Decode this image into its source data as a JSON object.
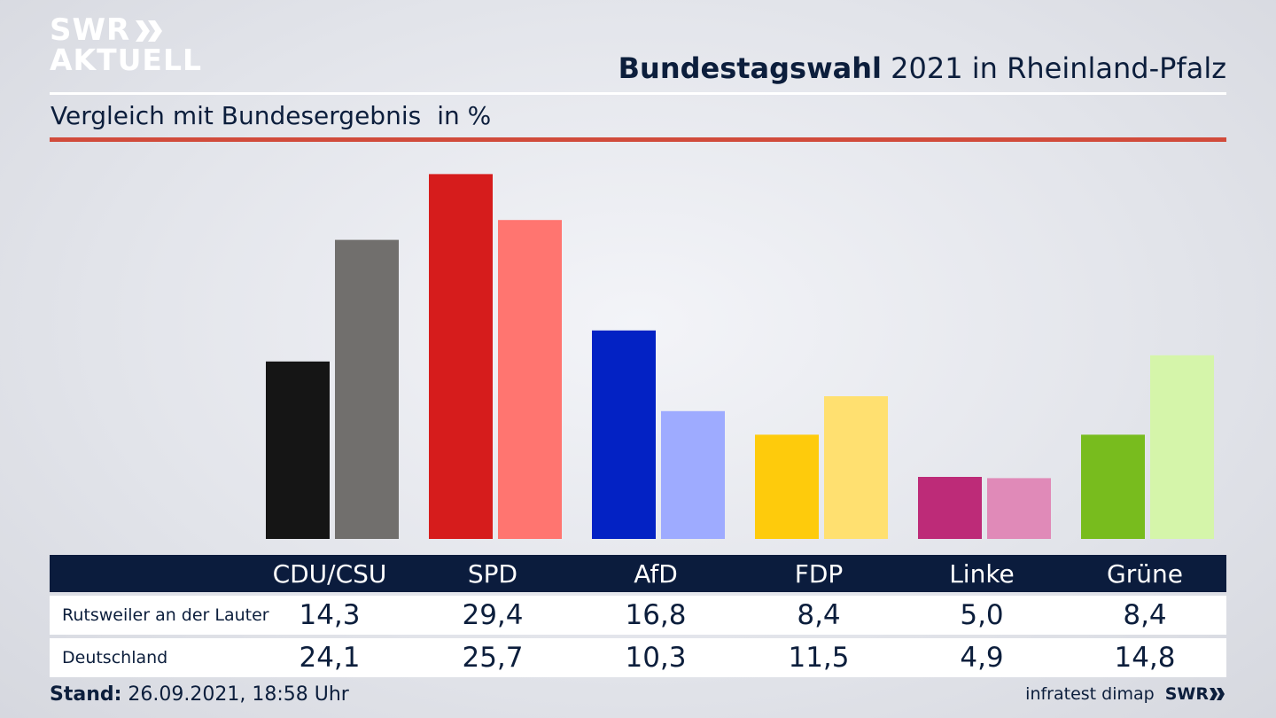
{
  "logo": {
    "line1": "SWR",
    "line2": "AKTUELL"
  },
  "header": {
    "title_bold": "Bundestagswahl",
    "title_rest": " 2021 in Rheinland-Pfalz"
  },
  "subtitle": {
    "text": "Vergleich mit Bundesergebnis",
    "unit": "in %"
  },
  "chart_data": {
    "type": "bar",
    "categories": [
      "CDU/CSU",
      "SPD",
      "AfD",
      "FDP",
      "Linke",
      "Grüne"
    ],
    "series": [
      {
        "name": "Rutsweiler an der Lauter",
        "values": [
          14.3,
          29.4,
          16.8,
          8.4,
          5.0,
          8.4
        ]
      },
      {
        "name": "Deutschland",
        "values": [
          24.1,
          25.7,
          10.3,
          11.5,
          4.9,
          14.8
        ]
      }
    ],
    "colors_primary": [
      "#151515",
      "#d61c1c",
      "#0322c4",
      "#fecb0c",
      "#bd2b78",
      "#78bc1e"
    ],
    "colors_secondary": [
      "#716f6d",
      "#ff7570",
      "#9eabff",
      "#ffe070",
      "#e08ab8",
      "#d5f5aa"
    ],
    "ylim": [
      0,
      30
    ],
    "grid": false,
    "legend": "table-below"
  },
  "table": {
    "headers": [
      "CDU/CSU",
      "SPD",
      "AfD",
      "FDP",
      "Linke",
      "Grüne"
    ],
    "rows": [
      {
        "label": "Rutsweiler an der Lauter",
        "values": [
          "14,3",
          "29,4",
          "16,8",
          "8,4",
          "5,0",
          "8,4"
        ]
      },
      {
        "label": "Deutschland",
        "values": [
          "24,1",
          "25,7",
          "10,3",
          "11,5",
          "4,9",
          "14,8"
        ]
      }
    ]
  },
  "footer": {
    "stand_label": "Stand:",
    "stand_value": " 26.09.2021, 18:58 Uhr",
    "source": "infratest dimap",
    "brand": "SWR"
  }
}
